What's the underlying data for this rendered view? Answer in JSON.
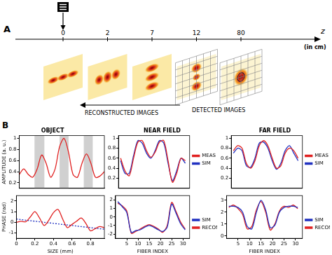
{
  "panel_a": {
    "label": "A",
    "axis": {
      "name": "z",
      "unit": "(in cm)",
      "ticks": [
        0,
        2,
        7,
        12,
        80
      ]
    },
    "reconstructed_label": "RECONSTRUCTED IMAGES",
    "detected_label": "DETECTED IMAGES"
  },
  "panel_b": {
    "label": "B"
  },
  "chart_data": [
    {
      "type": "line",
      "title": "OBJECT",
      "y_label": "AMPLITUDE (a. u.)",
      "x": [
        0,
        0.05,
        0.1,
        0.15,
        0.2,
        0.25,
        0.3,
        0.35,
        0.4,
        0.45,
        0.5,
        0.55,
        0.6,
        0.65,
        0.7,
        0.75,
        0.8,
        0.85,
        0.9,
        0.95
      ],
      "series": [
        {
          "color": "#e02020",
          "line_style": "solid",
          "values": [
            0.35,
            0.45,
            0.35,
            0.3,
            0.45,
            0.7,
            0.55,
            0.3,
            0.45,
            0.85,
            1.0,
            0.75,
            0.35,
            0.3,
            0.55,
            0.72,
            0.55,
            0.3,
            0.32,
            0.4
          ]
        }
      ],
      "shaded_bands": [
        [
          0.17,
          0.28
        ],
        [
          0.45,
          0.55
        ],
        [
          0.72,
          0.82
        ]
      ],
      "xlim": [
        0,
        0.95
      ],
      "ylim": [
        0.1,
        1.05
      ],
      "yticks": [
        0.2,
        0.4,
        0.6,
        0.8,
        1
      ],
      "grid": false,
      "tick_labels": "y"
    },
    {
      "type": "line",
      "x_label": "SIZE (mm)",
      "y_label": "PHASE (rad)",
      "x": [
        0,
        0.05,
        0.1,
        0.15,
        0.2,
        0.25,
        0.3,
        0.35,
        0.4,
        0.45,
        0.5,
        0.55,
        0.6,
        0.65,
        0.7,
        0.75,
        0.8,
        0.85,
        0.9,
        0.95
      ],
      "series": [
        {
          "color": "#e02020",
          "line_style": "solid",
          "values": [
            0,
            0.1,
            0.05,
            0.5,
            1.0,
            0.4,
            -0.3,
            0.2,
            0.9,
            1.2,
            0.3,
            -0.5,
            -0.2,
            0.1,
            0.4,
            -0.1,
            -0.8,
            -0.6,
            -0.4,
            -0.5
          ]
        },
        {
          "color": "#2030c0",
          "line_style": "dotted",
          "values": [
            0.3,
            0.25,
            0.2,
            0.15,
            0.1,
            0.05,
            0,
            -0.05,
            -0.1,
            -0.15,
            -0.2,
            -0.25,
            -0.3,
            -0.35,
            -0.4,
            -0.45,
            -0.5,
            -0.55,
            -0.6,
            -0.65
          ]
        }
      ],
      "xlim": [
        0,
        0.95
      ],
      "ylim": [
        -1.5,
        2.5
      ],
      "xticks": [
        0,
        0.2,
        0.4,
        0.6,
        0.8
      ],
      "yticks": [
        -1,
        0,
        1,
        2
      ],
      "grid": false
    },
    {
      "type": "line",
      "title": "NEAR FIELD",
      "x": [
        1,
        3,
        5,
        7,
        9,
        11,
        13,
        15,
        17,
        19,
        21,
        23,
        25,
        27,
        29,
        31
      ],
      "series": [
        {
          "name": "MEAS",
          "color": "#e02020",
          "line_style": "solid",
          "values": [
            0.6,
            0.35,
            0.25,
            0.6,
            0.92,
            0.95,
            0.75,
            0.62,
            0.72,
            0.92,
            0.95,
            0.55,
            0.12,
            0.3,
            0.6,
            0.55
          ]
        },
        {
          "name": "SIM",
          "color": "#2030c0",
          "line_style": "solid",
          "values": [
            0.55,
            0.3,
            0.3,
            0.65,
            0.95,
            0.9,
            0.7,
            0.6,
            0.75,
            0.95,
            0.9,
            0.5,
            0.15,
            0.35,
            0.6,
            0.5
          ]
        }
      ],
      "xlim": [
        0,
        33
      ],
      "ylim": [
        0,
        1.05
      ],
      "yticks": [
        0.2,
        0.4,
        0.6,
        0.8,
        1
      ],
      "grid": false,
      "legend": "right",
      "tick_labels": "y"
    },
    {
      "type": "line",
      "x_label": "FIBER INDEX",
      "x": [
        1,
        3,
        5,
        7,
        9,
        11,
        13,
        15,
        17,
        19,
        21,
        23,
        25,
        27,
        29,
        31
      ],
      "series": [
        {
          "name": "SIM",
          "color": "#2030c0",
          "line_style": "solid",
          "values": [
            1.8,
            1.2,
            0.5,
            -1.8,
            -1.6,
            -1.5,
            -1.2,
            -1.0,
            -1.2,
            -1.5,
            -1.7,
            -1.2,
            1.5,
            0.4,
            -0.8,
            -1.5
          ]
        },
        {
          "name": "RECON",
          "color": "#e02020",
          "line_style": "solid",
          "values": [
            1.6,
            1.3,
            0.7,
            -1.9,
            -1.7,
            -1.4,
            -1.1,
            -0.9,
            -1.1,
            -1.4,
            -1.8,
            -1.0,
            1.7,
            0.6,
            -0.6,
            -1.4
          ]
        }
      ],
      "xlim": [
        0,
        33
      ],
      "ylim": [
        -2.5,
        2.5
      ],
      "xticks": [
        5,
        10,
        15,
        20,
        25,
        30
      ],
      "yticks": [
        -2,
        -1,
        0,
        1,
        2
      ],
      "grid": false,
      "legend": "right"
    },
    {
      "type": "line",
      "title": "FAR FIELD",
      "x": [
        1,
        3,
        5,
        7,
        9,
        11,
        13,
        15,
        17,
        19,
        21,
        23,
        25,
        27,
        29,
        31
      ],
      "series": [
        {
          "name": "MEAS",
          "color": "#e02020",
          "line_style": "solid",
          "values": [
            0.75,
            0.85,
            0.8,
            0.5,
            0.4,
            0.55,
            0.85,
            0.95,
            0.85,
            0.6,
            0.4,
            0.45,
            0.7,
            0.8,
            0.75,
            0.6
          ]
        },
        {
          "name": "SIM",
          "color": "#2030c0",
          "line_style": "solid",
          "values": [
            0.7,
            0.8,
            0.75,
            0.45,
            0.42,
            0.6,
            0.9,
            0.92,
            0.8,
            0.55,
            0.38,
            0.5,
            0.75,
            0.85,
            0.7,
            0.55
          ]
        }
      ],
      "xlim": [
        0,
        33
      ],
      "ylim": [
        0,
        1.05
      ],
      "yticks": [
        0.2,
        0.4,
        0.6,
        0.8,
        1
      ],
      "grid": false,
      "legend": "right",
      "tick_labels": "y"
    },
    {
      "type": "line",
      "x_label": "FIBER INDEX",
      "x": [
        1,
        3,
        5,
        7,
        9,
        11,
        13,
        15,
        17,
        19,
        21,
        23,
        25,
        27,
        29,
        31
      ],
      "series": [
        {
          "name": "SIM",
          "color": "#2030c0",
          "line_style": "solid",
          "values": [
            2.5,
            2.5,
            2.4,
            2.0,
            0.8,
            0.6,
            2.0,
            3.0,
            2.2,
            0.7,
            0.9,
            2.0,
            2.4,
            2.5,
            2.5,
            2.4
          ]
        },
        {
          "name": "RECON",
          "color": "#e02020",
          "line_style": "solid",
          "values": [
            2.4,
            2.6,
            2.3,
            1.8,
            0.6,
            0.8,
            2.2,
            2.9,
            2.0,
            0.5,
            1.0,
            2.1,
            2.5,
            2.4,
            2.6,
            2.3
          ]
        }
      ],
      "xlim": [
        0,
        33
      ],
      "ylim": [
        -0.2,
        3.4
      ],
      "xticks": [
        5,
        10,
        15,
        20,
        25,
        30
      ],
      "yticks": [
        0,
        1,
        2,
        3
      ],
      "grid": false,
      "legend": "right"
    }
  ]
}
